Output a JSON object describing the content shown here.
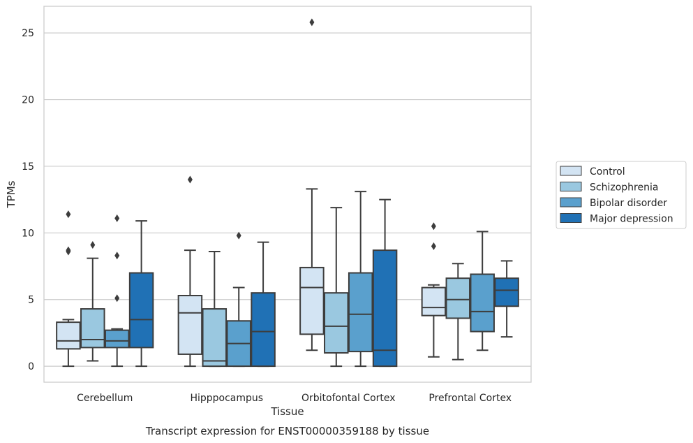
{
  "chart_data": {
    "type": "box",
    "title": "",
    "caption": "Transcript expression for ENST00000359188 by tissue",
    "xlabel": "Tissue",
    "ylabel": "TPMs",
    "ylim": [
      -1.2,
      27
    ],
    "yticks": [
      0,
      5,
      10,
      15,
      20,
      25
    ],
    "grid": "horizontal",
    "legend_position": "right",
    "categories": [
      "Cerebellum",
      "Hipppocampus",
      "Orbitofontal Cortex",
      "Prefrontal Cortex"
    ],
    "series": [
      {
        "name": "Control",
        "color": "#d3e4f3",
        "boxes": [
          {
            "whislo": 0.0,
            "q1": 1.3,
            "med": 1.9,
            "q3": 3.3,
            "whishi": 3.5,
            "fliers": [
              11.4,
              8.7,
              8.6
            ]
          },
          {
            "whislo": 0.0,
            "q1": 0.9,
            "med": 4.0,
            "q3": 5.3,
            "whishi": 8.7,
            "fliers": [
              14.0
            ]
          },
          {
            "whislo": 1.2,
            "q1": 2.4,
            "med": 5.9,
            "q3": 7.4,
            "whishi": 13.3,
            "fliers": [
              25.8
            ]
          },
          {
            "whislo": 0.7,
            "q1": 3.8,
            "med": 4.4,
            "q3": 5.9,
            "whishi": 6.1,
            "fliers": [
              10.5,
              9.0
            ]
          }
        ]
      },
      {
        "name": "Schizophrenia",
        "color": "#9ac8e0",
        "boxes": [
          {
            "whislo": 0.4,
            "q1": 1.4,
            "med": 2.0,
            "q3": 4.3,
            "whishi": 8.1,
            "fliers": [
              9.1
            ]
          },
          {
            "whislo": 0.0,
            "q1": 0.0,
            "med": 0.4,
            "q3": 4.3,
            "whishi": 8.6,
            "fliers": []
          },
          {
            "whislo": 0.0,
            "q1": 1.0,
            "med": 3.0,
            "q3": 5.5,
            "whishi": 11.9,
            "fliers": []
          },
          {
            "whislo": 0.5,
            "q1": 3.6,
            "med": 5.0,
            "q3": 6.6,
            "whishi": 7.7,
            "fliers": []
          }
        ]
      },
      {
        "name": "Bipolar disorder",
        "color": "#5aa0cd",
        "boxes": [
          {
            "whislo": 0.0,
            "q1": 1.4,
            "med": 1.9,
            "q3": 2.7,
            "whishi": 2.8,
            "fliers": [
              11.1,
              8.3,
              5.1
            ]
          },
          {
            "whislo": 0.0,
            "q1": 0.0,
            "med": 1.7,
            "q3": 3.4,
            "whishi": 5.9,
            "fliers": [
              9.8
            ]
          },
          {
            "whislo": 0.0,
            "q1": 1.1,
            "med": 3.9,
            "q3": 7.0,
            "whishi": 13.1,
            "fliers": []
          },
          {
            "whislo": 1.2,
            "q1": 2.6,
            "med": 4.1,
            "q3": 6.9,
            "whishi": 10.1,
            "fliers": []
          }
        ]
      },
      {
        "name": "Major depression",
        "color": "#2071b5",
        "boxes": [
          {
            "whislo": 0.0,
            "q1": 1.4,
            "med": 3.5,
            "q3": 7.0,
            "whishi": 10.9,
            "fliers": []
          },
          {
            "whislo": 0.0,
            "q1": 0.0,
            "med": 2.6,
            "q3": 5.5,
            "whishi": 9.3,
            "fliers": []
          },
          {
            "whislo": 0.0,
            "q1": 0.0,
            "med": 1.2,
            "q3": 8.7,
            "whishi": 12.5,
            "fliers": []
          },
          {
            "whislo": 2.2,
            "q1": 4.5,
            "med": 5.7,
            "q3": 6.6,
            "whishi": 7.9,
            "fliers": []
          }
        ]
      }
    ]
  }
}
